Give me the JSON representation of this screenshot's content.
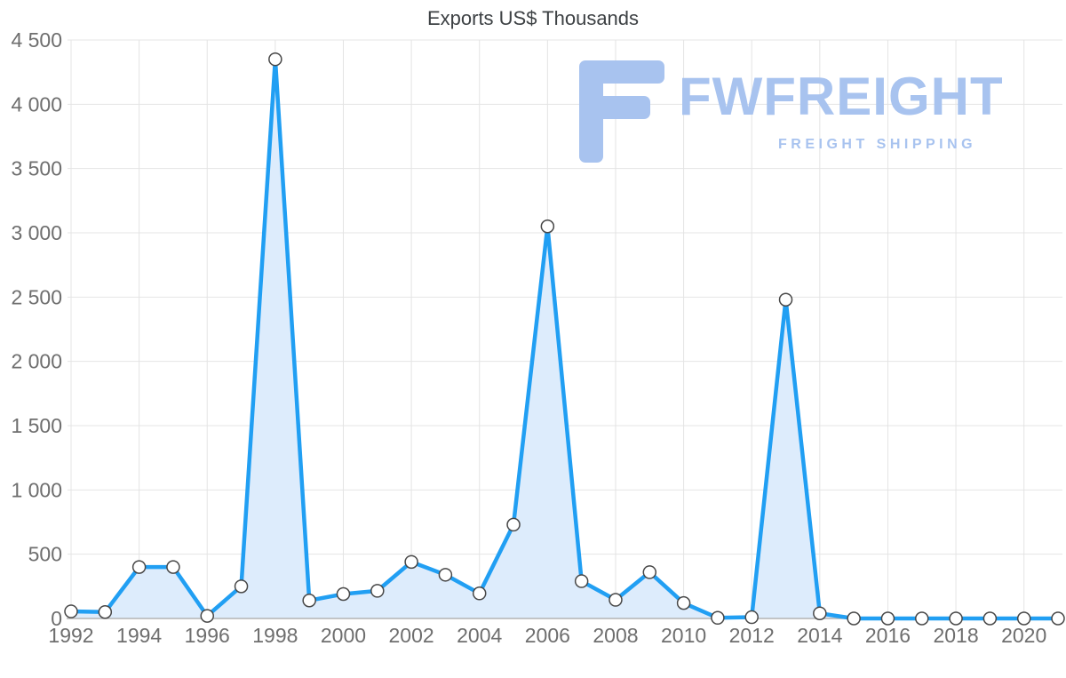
{
  "chart_data": {
    "type": "area",
    "title": "Exports US$ Thousands",
    "x": [
      1992,
      1993,
      1994,
      1995,
      1996,
      1997,
      1998,
      1999,
      2000,
      2001,
      2002,
      2003,
      2004,
      2005,
      2006,
      2007,
      2008,
      2009,
      2010,
      2011,
      2012,
      2013,
      2014,
      2015,
      2016,
      2017,
      2018,
      2019,
      2020,
      2021
    ],
    "values": [
      55,
      50,
      400,
      400,
      20,
      250,
      4350,
      140,
      190,
      215,
      440,
      340,
      195,
      730,
      3050,
      290,
      145,
      360,
      120,
      5,
      10,
      2480,
      40,
      0,
      0,
      0,
      0,
      0,
      0,
      0
    ],
    "x_tick_values": [
      1992,
      1994,
      1996,
      1998,
      2000,
      2002,
      2004,
      2006,
      2008,
      2010,
      2012,
      2014,
      2016,
      2018,
      2020
    ],
    "x_tick_labels": [
      "1992",
      "1994",
      "1996",
      "1998",
      "2000",
      "2002",
      "2004",
      "2006",
      "2008",
      "2010",
      "2012",
      "2014",
      "2016",
      "2018",
      "2020"
    ],
    "y_tick_values": [
      0,
      500,
      1000,
      1500,
      2000,
      2500,
      3000,
      3500,
      4000,
      4500
    ],
    "y_tick_labels": [
      "0",
      "500",
      "1 000",
      "1 500",
      "2 000",
      "2 500",
      "3 000",
      "3 500",
      "4 000",
      "4 500"
    ],
    "ylim": [
      0,
      4500
    ],
    "grid": true,
    "legend": "none",
    "line_color": "#219ff3",
    "area_color": "#ddecfc",
    "marker_fill": "#ffffff",
    "marker_stroke": "#474747",
    "grid_color": "#e4e4e4",
    "axis_color": "#b3b3b3",
    "tick_color": "#6e6e6e"
  },
  "watermark": {
    "brand": "FWFREIGHT",
    "tagline": "FREIGHT SHIPPING",
    "color": "#a8c3ef"
  }
}
